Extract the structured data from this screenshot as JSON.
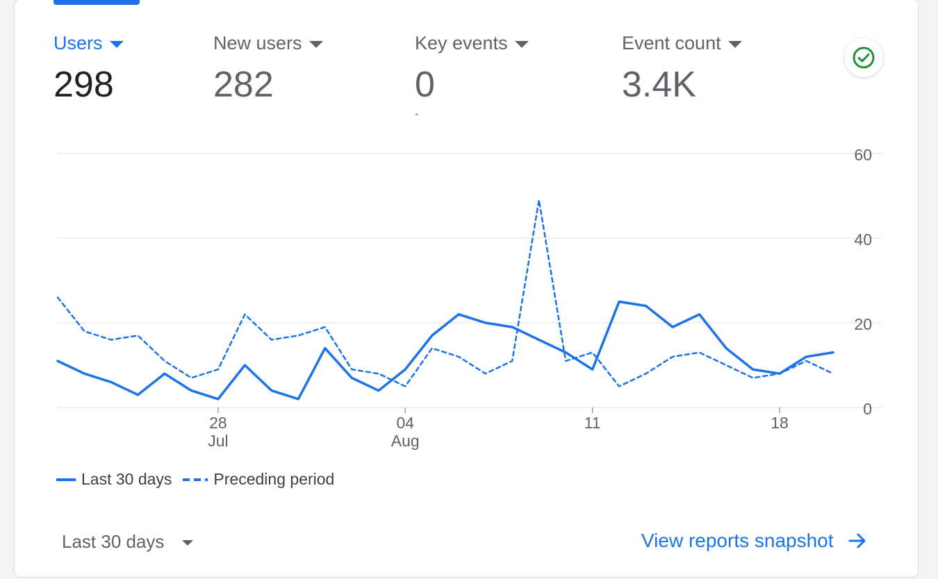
{
  "metrics": [
    {
      "label": "Users",
      "value": "298",
      "sub": "",
      "active": true
    },
    {
      "label": "New users",
      "value": "282",
      "sub": "",
      "active": false
    },
    {
      "label": "Key events",
      "value": "0",
      "sub": "-",
      "active": false
    },
    {
      "label": "Event count",
      "value": "3.4K",
      "sub": "",
      "active": false
    }
  ],
  "status_icon": "check-circle-icon",
  "chart_data": {
    "type": "line",
    "x": [
      "Jul 22",
      "Jul 23",
      "Jul 24",
      "Jul 25",
      "Jul 26",
      "Jul 27",
      "Jul 28",
      "Jul 29",
      "Jul 30",
      "Jul 31",
      "Aug 01",
      "Aug 02",
      "Aug 03",
      "Aug 04",
      "Aug 05",
      "Aug 06",
      "Aug 07",
      "Aug 08",
      "Aug 09",
      "Aug 10",
      "Aug 11",
      "Aug 12",
      "Aug 13",
      "Aug 14",
      "Aug 15",
      "Aug 16",
      "Aug 17",
      "Aug 18",
      "Aug 19",
      "Aug 20"
    ],
    "series": [
      {
        "name": "Last 30 days",
        "style": "solid",
        "values": [
          11,
          8,
          6,
          3,
          8,
          4,
          2,
          10,
          4,
          2,
          14,
          7,
          4,
          9,
          17,
          22,
          20,
          19,
          16,
          13,
          9,
          25,
          24,
          19,
          22,
          14,
          9,
          8,
          12,
          13
        ]
      },
      {
        "name": "Preceding period",
        "style": "dashed",
        "values": [
          26,
          18,
          16,
          17,
          11,
          7,
          9,
          22,
          16,
          17,
          19,
          9,
          8,
          5,
          14,
          12,
          8,
          11,
          49,
          11,
          13,
          5,
          8,
          12,
          13,
          10,
          7,
          8,
          11,
          8
        ]
      }
    ],
    "x_ticks": [
      {
        "index": 6,
        "label": "28",
        "sublabel": "Jul"
      },
      {
        "index": 13,
        "label": "04",
        "sublabel": "Aug"
      },
      {
        "index": 20,
        "label": "11",
        "sublabel": ""
      },
      {
        "index": 27,
        "label": "18",
        "sublabel": ""
      }
    ],
    "y_ticks": [
      0,
      20,
      40,
      60
    ],
    "ylim": [
      0,
      60
    ],
    "grid": true,
    "legend_position": "bottom-left",
    "color": "#1a73e8"
  },
  "footer": {
    "range_label": "Last 30 days",
    "link_label": "View reports snapshot"
  }
}
